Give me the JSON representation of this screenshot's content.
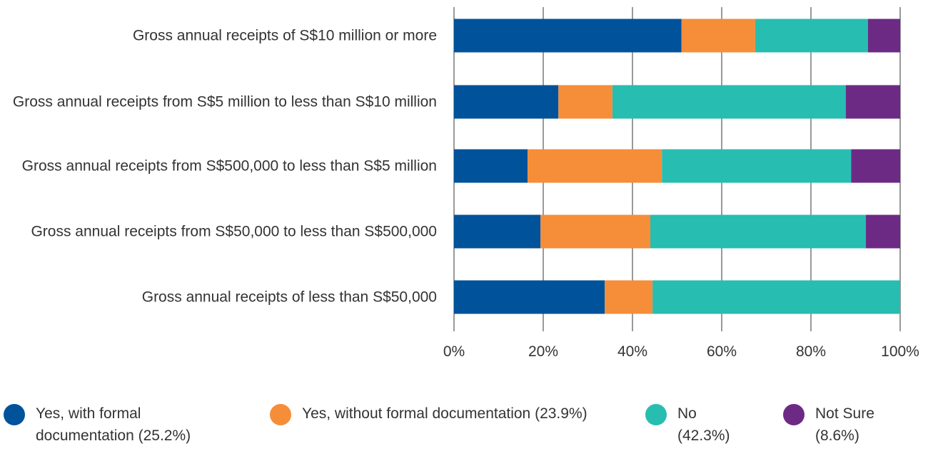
{
  "chart_data": {
    "type": "stacked-bar-horizontal",
    "categories": [
      "Gross annual receipts of S$10 million or more",
      "Gross annual receipts from S$5 million to less than S$10 million",
      "Gross annual receipts from S$500,000 to less than S$5 million",
      "Gross annual receipts from S$50,000 to less than S$500,000",
      "Gross annual receipts of less than S$50,000"
    ],
    "series": [
      {
        "name": "Yes, with formal documentation (25.2%)",
        "color": "#00529b",
        "values": [
          51.0,
          23.4,
          16.5,
          19.4,
          33.8
        ]
      },
      {
        "name": "Yes, without formal documentation (23.9%)",
        "color": "#f68d39",
        "values": [
          16.5,
          12.1,
          30.1,
          24.6,
          10.7
        ]
      },
      {
        "name": "No (42.3%)",
        "color": "#27bdb0",
        "values": [
          25.3,
          52.3,
          42.4,
          48.3,
          55.5
        ]
      },
      {
        "name": "Not Sure (8.6%)",
        "color": "#6c2a85",
        "values": [
          7.2,
          12.2,
          11.0,
          7.7,
          0
        ]
      }
    ],
    "xlim": [
      0,
      100
    ],
    "xticks": [
      {
        "value": 0,
        "label": "0%"
      },
      {
        "value": 20,
        "label": "20%"
      },
      {
        "value": 40,
        "label": "40%"
      },
      {
        "value": 60,
        "label": "60%"
      },
      {
        "value": 80,
        "label": "80%"
      },
      {
        "value": 100,
        "label": "100%"
      }
    ],
    "grid": true
  }
}
